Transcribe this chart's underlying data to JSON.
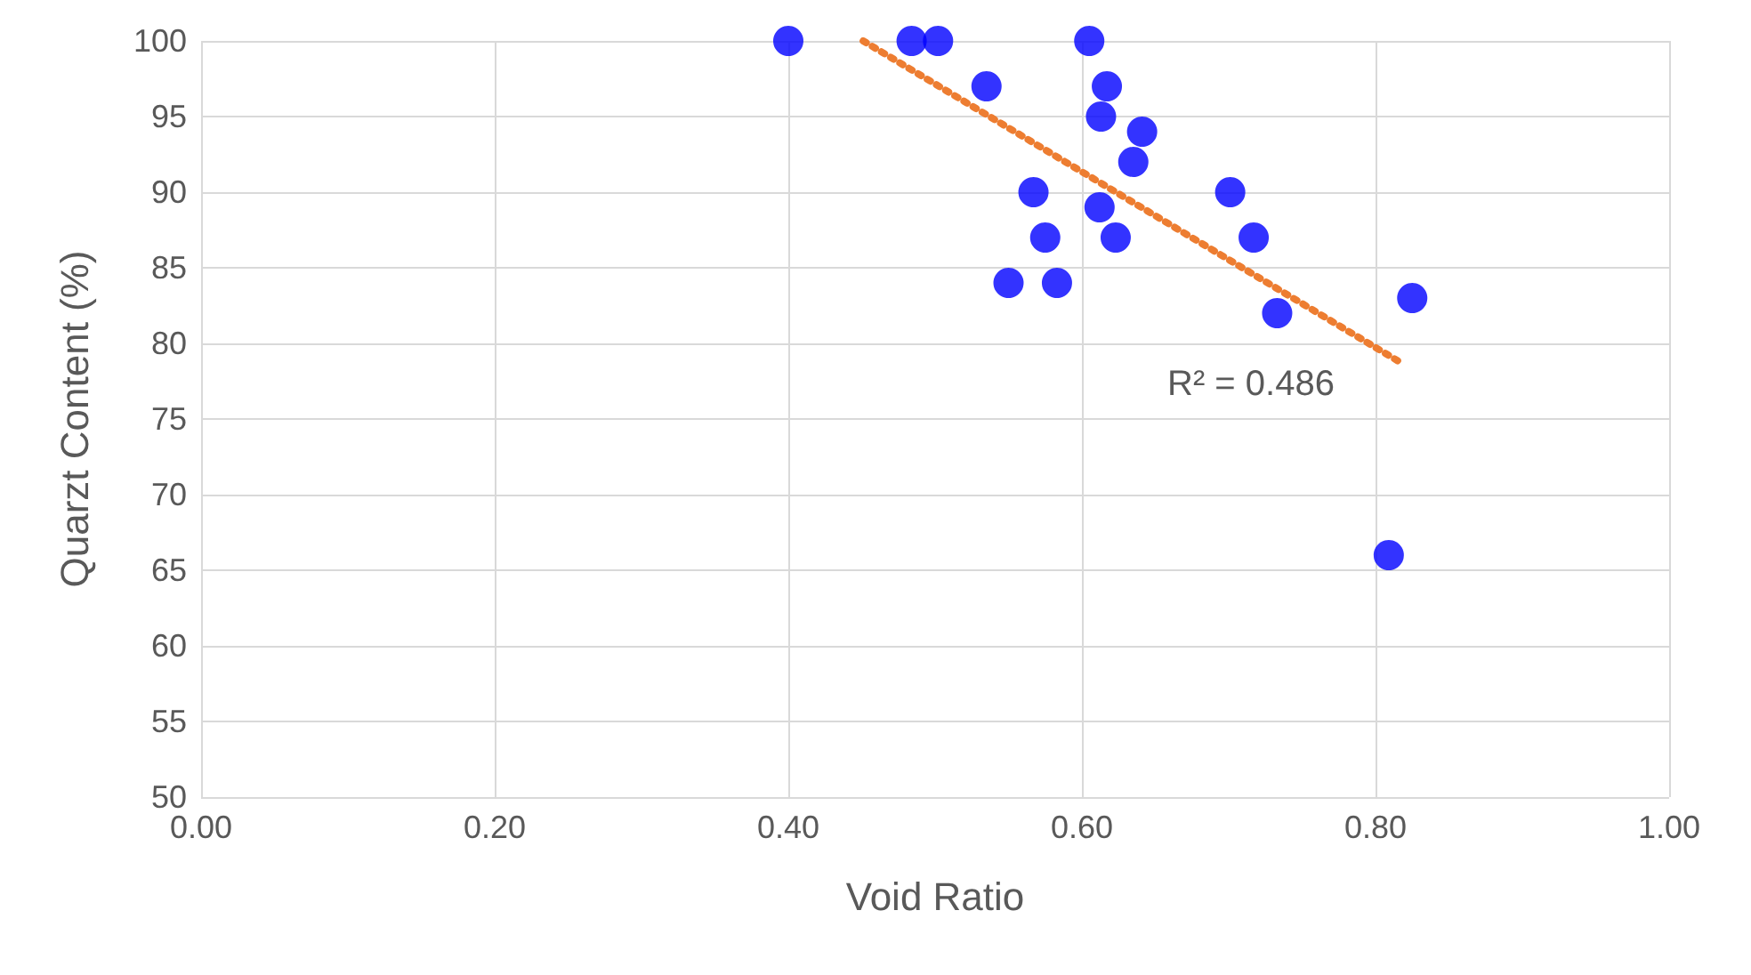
{
  "chart_data": {
    "type": "scatter",
    "xlabel": "Void Ratio",
    "ylabel": "Quarzt Content (%)",
    "xlim": [
      0,
      1
    ],
    "ylim": [
      50,
      100
    ],
    "xticks": [
      {
        "value": 0,
        "label": "0.00"
      },
      {
        "value": 0.2,
        "label": "0.20"
      },
      {
        "value": 0.4,
        "label": "0.40"
      },
      {
        "value": 0.6,
        "label": "0.60"
      },
      {
        "value": 0.8,
        "label": "0.80"
      },
      {
        "value": 1,
        "label": "1.00"
      }
    ],
    "yticks": [
      50,
      55,
      60,
      65,
      70,
      75,
      80,
      85,
      90,
      95,
      100
    ],
    "grid": true,
    "marker": "circle",
    "series": [
      {
        "color": "#0000ff",
        "x": [
          0.4,
          0.484,
          0.502,
          0.605,
          0.535,
          0.617,
          0.613,
          0.641,
          0.635,
          0.567,
          0.701,
          0.612,
          0.575,
          0.623,
          0.717,
          0.55,
          0.583,
          0.733,
          0.825,
          0.809
        ],
        "values": [
          100,
          100,
          100,
          100,
          97,
          97,
          95,
          94,
          92,
          90,
          90,
          89,
          87,
          87,
          87,
          84,
          84,
          82,
          83,
          66
        ]
      },
      {
        "type": "line",
        "color": "#ed7d31",
        "line_style": "dotted",
        "marker": "none",
        "x": [
          0.451,
          0.816
        ],
        "values": [
          100,
          78.8
        ]
      }
    ],
    "annotations": [
      "R² = 0.486"
    ]
  }
}
